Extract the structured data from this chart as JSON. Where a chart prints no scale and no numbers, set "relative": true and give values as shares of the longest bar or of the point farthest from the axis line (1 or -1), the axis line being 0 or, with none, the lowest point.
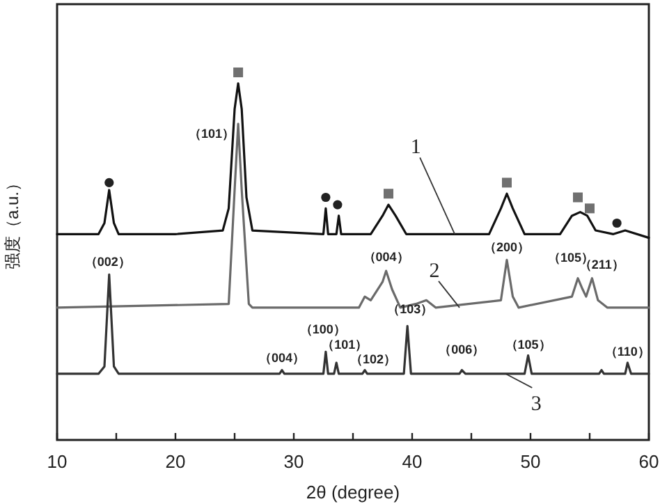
{
  "chart_data": {
    "type": "line",
    "relative": true,
    "xlabel": "2θ (degree)",
    "ylabel": "强度（a.u.）",
    "xlim": [
      10,
      60
    ],
    "xticks": [
      10,
      {
        "value": 15,
        "label": null
      },
      20,
      {
        "value": 25,
        "label": null
      },
      30,
      {
        "value": 35,
        "label": null
      },
      40,
      {
        "value": 45,
        "label": null
      },
      50,
      {
        "value": 55,
        "label": null
      },
      60
    ],
    "series": [
      {
        "type": "line",
        "color": "#111111",
        "x": [
          10,
          12,
          13.5,
          14.0,
          14.4,
          14.8,
          15.2,
          20,
          24.0,
          24.5,
          25.0,
          25.3,
          25.6,
          26.0,
          26.5,
          32.5,
          32.7,
          32.9,
          33.6,
          33.8,
          34.0,
          36.5,
          37.5,
          38.0,
          38.6,
          39.5,
          46.5,
          47.5,
          48.0,
          48.5,
          49.5,
          52.5,
          53.5,
          54.2,
          54.8,
          55.5,
          57,
          58,
          60
        ],
        "values": [
          0.56,
          0.56,
          0.56,
          0.59,
          0.68,
          0.59,
          0.56,
          0.56,
          0.57,
          0.63,
          0.9,
          0.97,
          0.9,
          0.66,
          0.57,
          0.56,
          0.63,
          0.56,
          0.56,
          0.61,
          0.56,
          0.56,
          0.61,
          0.64,
          0.61,
          0.56,
          0.56,
          0.63,
          0.67,
          0.63,
          0.56,
          0.56,
          0.61,
          0.62,
          0.61,
          0.57,
          0.56,
          0.57,
          0.55
        ]
      },
      {
        "type": "line",
        "color": "#6a6a6a",
        "x": [
          10,
          24.5,
          25.0,
          25.3,
          25.6,
          26.2,
          26.5,
          35.5,
          36,
          36.5,
          37.5,
          37.8,
          38.3,
          39,
          40.3,
          41.2,
          42,
          47.5,
          48.0,
          48.5,
          49,
          53.5,
          54.0,
          54.4,
          54.7,
          55.2,
          55.7,
          56.5,
          60
        ],
        "values": [
          0.36,
          0.37,
          0.68,
          0.86,
          0.68,
          0.37,
          0.36,
          0.36,
          0.39,
          0.38,
          0.43,
          0.46,
          0.41,
          0.36,
          0.37,
          0.38,
          0.36,
          0.38,
          0.49,
          0.39,
          0.36,
          0.39,
          0.44,
          0.41,
          0.39,
          0.44,
          0.38,
          0.36,
          0.36
        ]
      },
      {
        "type": "line",
        "color": "#333333",
        "x": [
          10,
          13.5,
          14.0,
          14.4,
          14.8,
          15.2,
          28.8,
          29.0,
          29.2,
          32.5,
          32.7,
          32.9,
          33.4,
          33.6,
          33.8,
          35.8,
          36.0,
          36.2,
          39.3,
          39.6,
          39.9,
          44.0,
          44.2,
          44.5,
          49.5,
          49.8,
          50.1,
          55.8,
          56.0,
          56.2,
          58.0,
          58.2,
          58.5,
          60
        ],
        "values": [
          0.18,
          0.18,
          0.2,
          0.45,
          0.2,
          0.18,
          0.18,
          0.19,
          0.18,
          0.18,
          0.24,
          0.18,
          0.18,
          0.21,
          0.18,
          0.18,
          0.19,
          0.18,
          0.18,
          0.31,
          0.18,
          0.18,
          0.19,
          0.18,
          0.18,
          0.23,
          0.18,
          0.18,
          0.19,
          0.18,
          0.18,
          0.21,
          0.18,
          0.18
        ]
      },
      {
        "type": "scatter",
        "marker": "square",
        "color": "#707070",
        "x": [
          25.3,
          38.0,
          48.0,
          54.0,
          55.0
        ],
        "values": [
          1.0,
          0.67,
          0.7,
          0.66,
          0.63
        ]
      },
      {
        "type": "scatter",
        "marker": "circle",
        "color": "#222222",
        "x": [
          14.4,
          32.7,
          33.7,
          57.3
        ],
        "values": [
          0.7,
          0.66,
          0.64,
          0.59
        ]
      }
    ],
    "annotations": [
      {
        "text": "（101）",
        "x": 25.3,
        "y": 0.86
      },
      {
        "text": "（004）",
        "x": 37.8,
        "y": 0.46
      },
      {
        "text": "（200）",
        "x": 48.0,
        "y": 0.49
      },
      {
        "text": "（105）",
        "x": 54.0,
        "y": 0.44
      },
      {
        "text": "（211）",
        "x": 55.2,
        "y": 0.44
      },
      {
        "text": "（002）",
        "x": 14.4,
        "y": 0.45
      },
      {
        "text": "（004）",
        "x": 29.0,
        "y": 0.19
      },
      {
        "text": "（100）",
        "x": 32.7,
        "y": 0.24
      },
      {
        "text": "（101）",
        "x": 33.6,
        "y": 0.21
      },
      {
        "text": "（102）",
        "x": 36.0,
        "y": 0.19
      },
      {
        "text": "（103）",
        "x": 39.6,
        "y": 0.31
      },
      {
        "text": "（006）",
        "x": 44.2,
        "y": 0.19
      },
      {
        "text": "（105）",
        "x": 49.8,
        "y": 0.23
      },
      {
        "text": "（110）",
        "x": 58.2,
        "y": 0.21
      },
      {
        "text": "1",
        "x": 43.6,
        "y": 0.56
      },
      {
        "text": "2",
        "x": 44.0,
        "y": 0.36
      },
      {
        "text": "3",
        "x": 47.9,
        "y": 0.18
      }
    ]
  }
}
